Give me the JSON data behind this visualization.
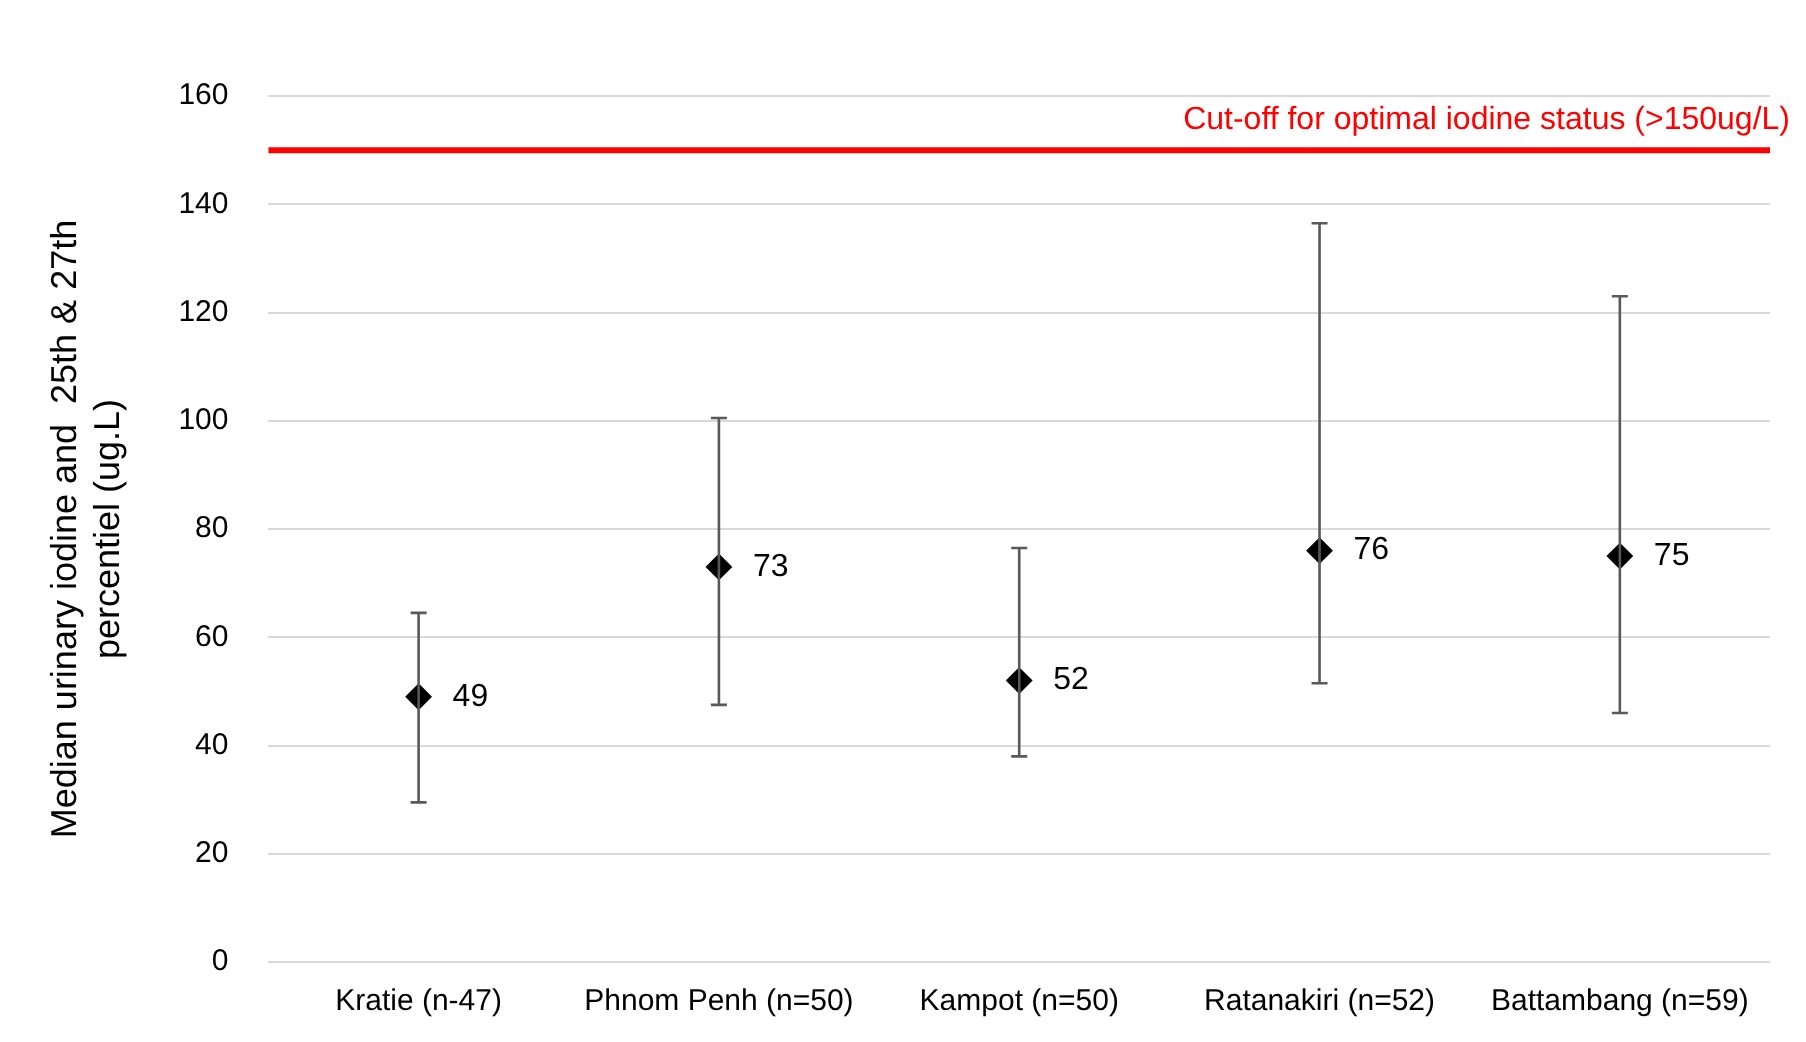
{
  "chart_data": {
    "type": "scatter",
    "ylabel": "Median urinary iodine and  25th & 27th percentiel (ug.L)",
    "categories": [
      "Kratie (n-47)",
      "Phnom Penh (n=50)",
      "Kampot (n=50)",
      "Ratanakiri (n=52)",
      "Battambang (n=59)"
    ],
    "series": [
      {
        "color": "#000000",
        "values": [
          49,
          73,
          52,
          76,
          75
        ],
        "errors": [
          [
            29.5,
            64.5
          ],
          [
            47.5,
            100.5
          ],
          [
            38,
            76.5
          ],
          [
            51.5,
            136.5
          ],
          [
            46,
            123
          ]
        ]
      }
    ],
    "ylim": [
      0,
      160
    ],
    "yticks": [
      0,
      20,
      40,
      60,
      80,
      100,
      120,
      140,
      160
    ],
    "grid": "y",
    "marker": "diamond",
    "data_labels": true,
    "ref_lines": [
      {
        "axis": "y",
        "value": 150,
        "label": "Cut-off for optimal iodine status (>150ug/L)",
        "color": "#ff0000"
      }
    ]
  }
}
